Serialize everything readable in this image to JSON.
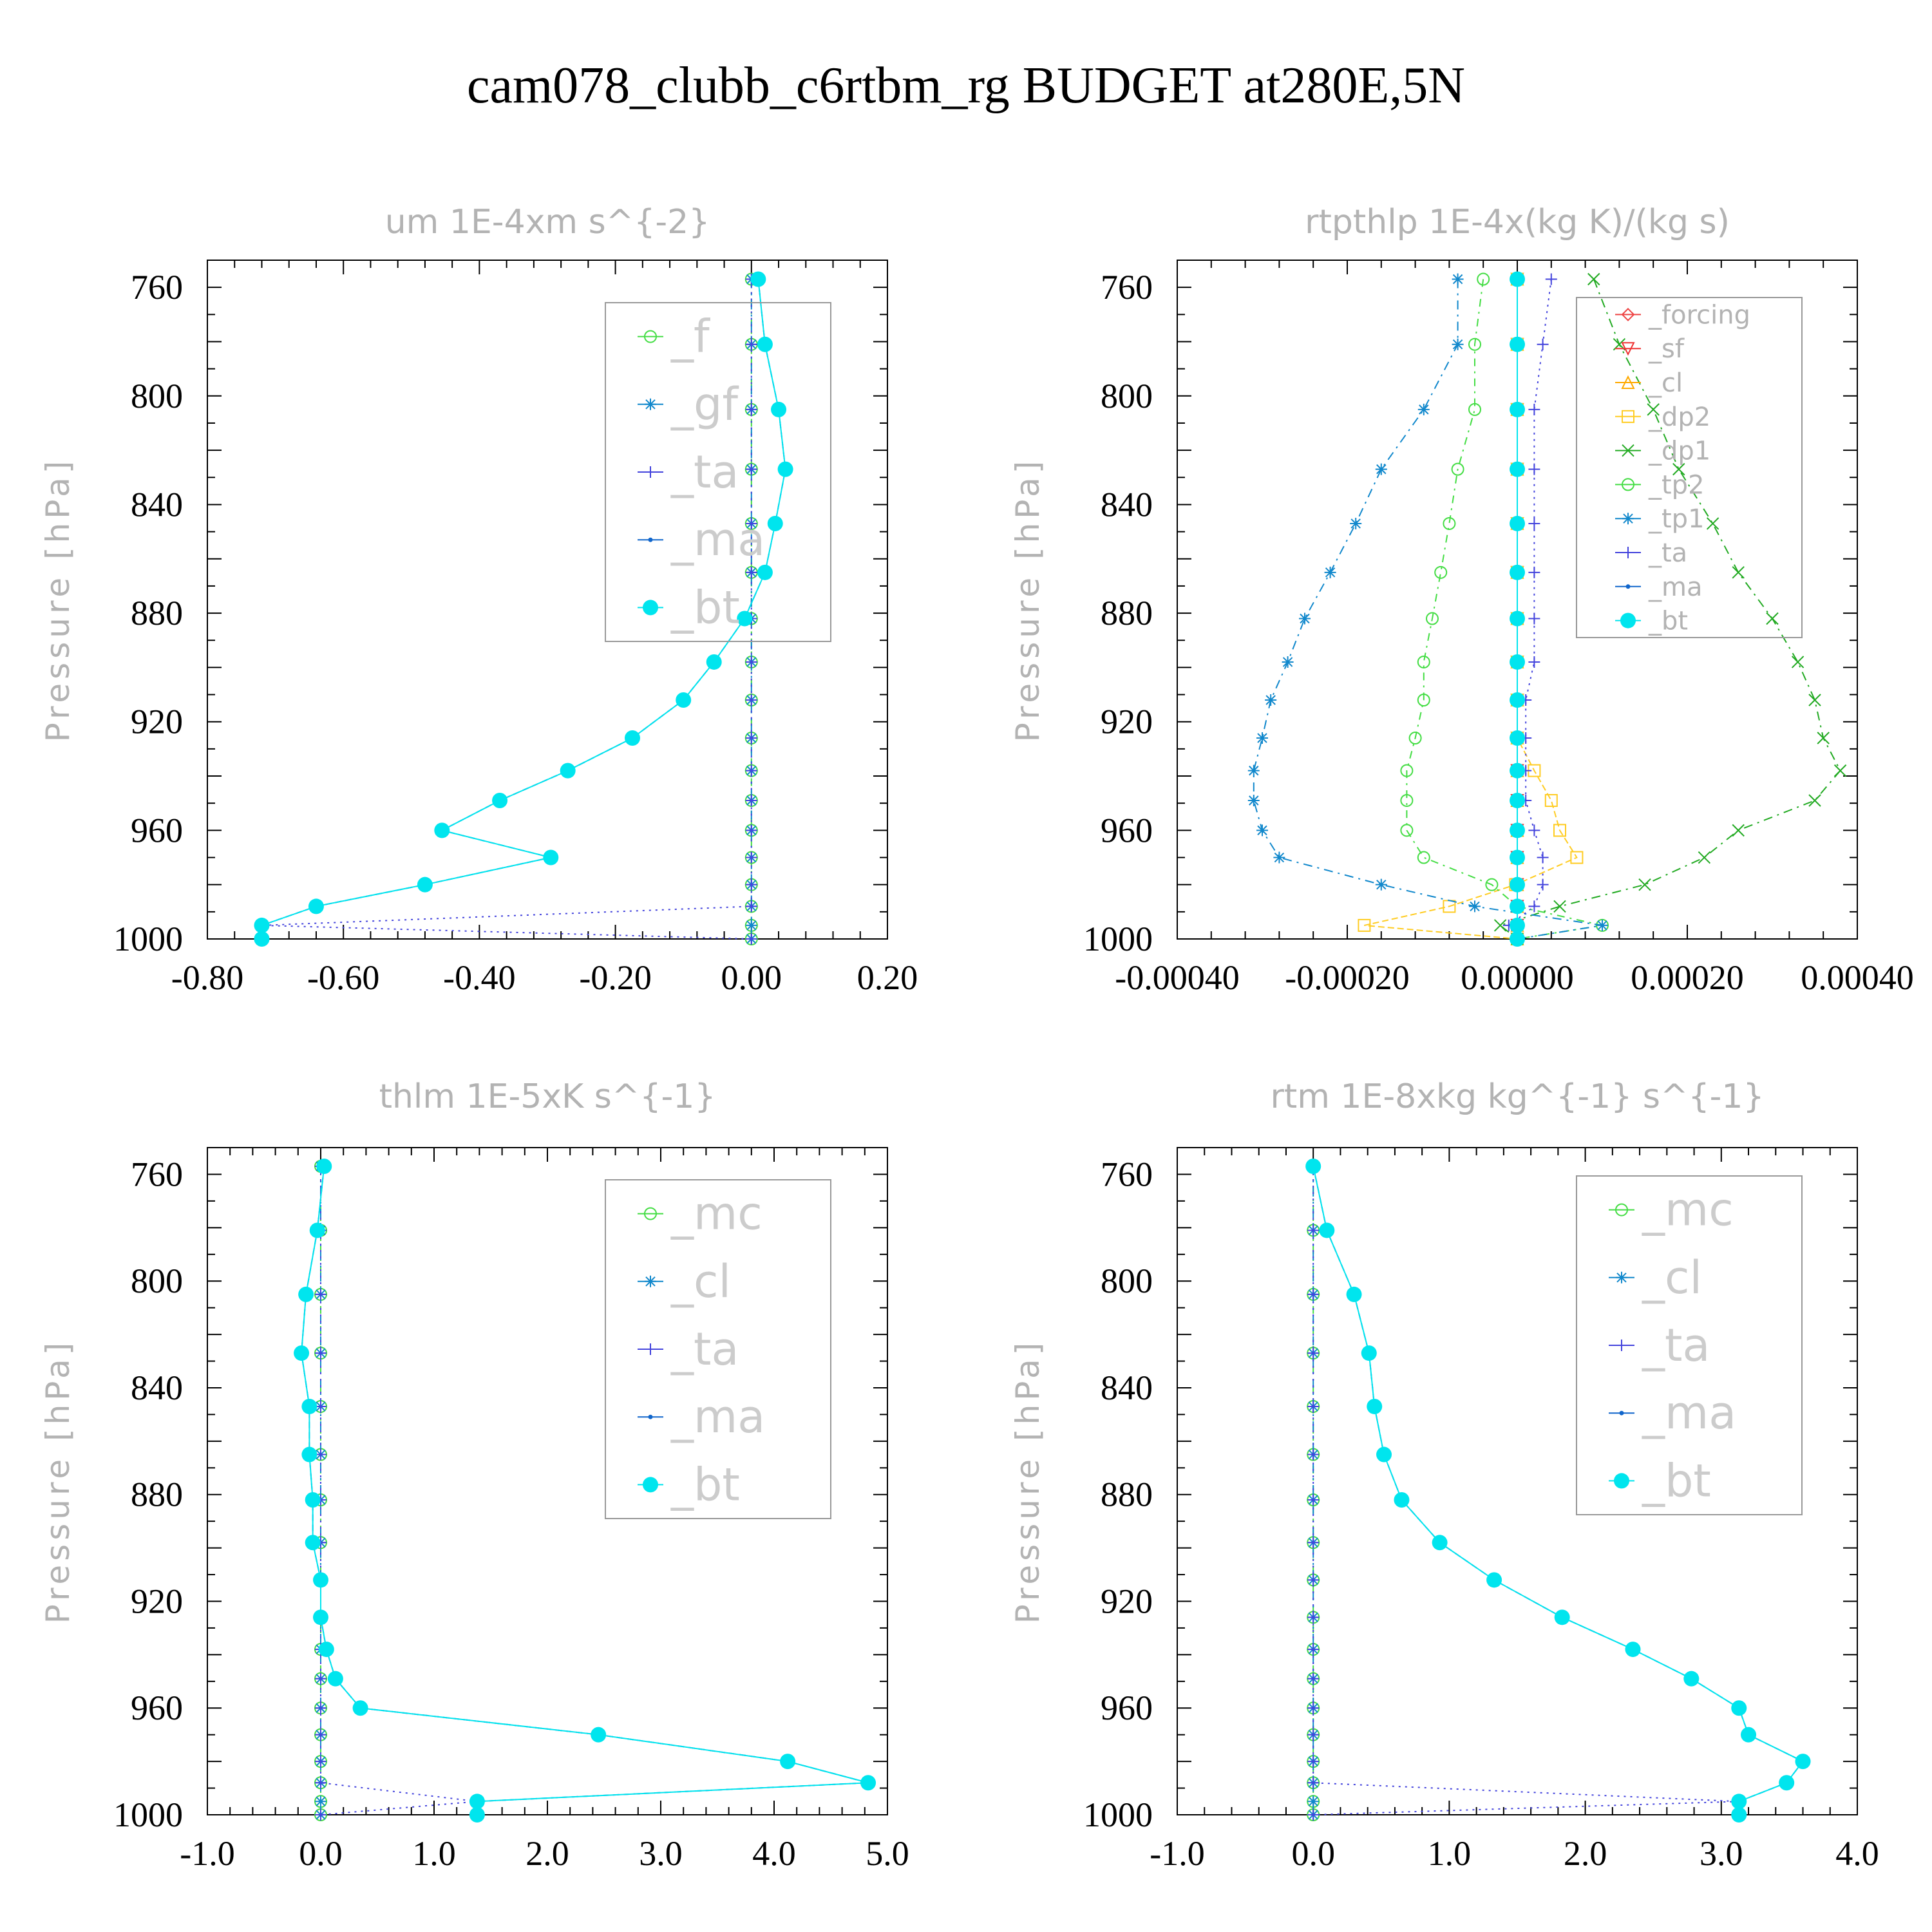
{
  "page": {
    "title": "cam078_clubb_c6rtbm_rg  BUDGET at280E,5N"
  },
  "styles": {
    "_f": {
      "color": "#44dd44",
      "marker": "circle",
      "dash": "12,8,3,8"
    },
    "_gf": {
      "color": "#1188cc",
      "marker": "asterisk",
      "dash": "14,8,3,8"
    },
    "_ta": {
      "color": "#4444dd",
      "marker": "plus",
      "dash": "3,7"
    },
    "_ma": {
      "color": "#1166cc",
      "marker": "dot",
      "dash": "10,6"
    },
    "_bt": {
      "color": "#00e5ee",
      "marker": "filled",
      "dash": "none"
    },
    "_forcing": {
      "color": "#ee4444",
      "marker": "diamond",
      "dash": "none"
    },
    "_sf": {
      "color": "#ee3333",
      "marker": "triangle-down",
      "dash": "none"
    },
    "_cl": {
      "color": "#ffaa00",
      "marker": "triangle-up",
      "dash": "none"
    },
    "_dp2": {
      "color": "#ffcc22",
      "marker": "square",
      "dash": "10,5"
    },
    "_dp1": {
      "color": "#22aa22",
      "marker": "x",
      "dash": "14,8,3,8"
    },
    "_tp2": {
      "color": "#44dd44",
      "marker": "circle",
      "dash": "12,8,3,8"
    },
    "_tp1": {
      "color": "#1188cc",
      "marker": "asterisk",
      "dash": "14,8,3,8"
    },
    "_mc": {
      "color": "#44dd44",
      "marker": "circle",
      "dash": "12,8,3,8"
    },
    "_cl_rtm": {
      "color": "#1188cc",
      "marker": "asterisk",
      "dash": "14,8,3,8"
    }
  },
  "chart_data": [
    {
      "type": "line",
      "title": "um  1E-4xm s^{-2}",
      "ylabel": "Pressure [hPa]",
      "yreversed": true,
      "ylim": [
        750,
        1000
      ],
      "yticks": [
        760,
        800,
        840,
        880,
        920,
        960,
        1000
      ],
      "xlim": [
        -0.8,
        0.2
      ],
      "xticks": [
        -0.8,
        -0.6,
        -0.4,
        -0.2,
        0.0,
        0.2
      ],
      "xtick_labels": [
        "-0.80",
        "-0.60",
        "-0.40",
        "-0.20",
        "0.00",
        "0.20"
      ],
      "legend_size": "big",
      "legend": [
        "_f",
        "_gf",
        "_ta",
        "_ma",
        "_bt"
      ],
      "y": [
        757,
        781,
        805,
        827,
        847,
        865,
        882,
        898,
        912,
        926,
        938,
        949,
        960,
        970,
        980,
        988,
        995,
        1000
      ],
      "series": [
        {
          "name": "_f",
          "values": [
            0,
            0,
            0,
            0,
            0,
            0,
            0,
            0,
            0,
            0,
            0,
            0,
            0,
            0,
            0,
            0,
            0,
            0
          ]
        },
        {
          "name": "_gf",
          "values": [
            0,
            0,
            0,
            0,
            0,
            0,
            0,
            0,
            0,
            0,
            0,
            0,
            0,
            0,
            0,
            0,
            0,
            0
          ]
        },
        {
          "name": "_ta",
          "values": [
            0,
            0,
            0,
            0,
            0,
            0,
            0,
            0,
            0,
            0,
            0,
            0,
            0,
            0,
            0,
            0,
            -0.72,
            0
          ]
        },
        {
          "name": "_ma",
          "values": [
            0.01,
            0.02,
            0.04,
            0.05,
            0.035,
            0.02,
            -0.01,
            -0.055,
            -0.1,
            -0.175,
            -0.27,
            -0.37,
            -0.455,
            -0.295,
            -0.48,
            -0.64,
            -0.72,
            -0.72
          ]
        },
        {
          "name": "_bt",
          "values": [
            0.01,
            0.02,
            0.04,
            0.05,
            0.035,
            0.02,
            -0.01,
            -0.055,
            -0.1,
            -0.175,
            -0.27,
            -0.37,
            -0.455,
            -0.295,
            -0.48,
            -0.64,
            -0.72,
            -0.72
          ]
        }
      ]
    },
    {
      "type": "line",
      "title": "rtpthlp  1E-4x(kg K)/(kg s)",
      "ylabel": "Pressure [hPa]",
      "yreversed": true,
      "ylim": [
        750,
        1000
      ],
      "yticks": [
        760,
        800,
        840,
        880,
        920,
        960,
        1000
      ],
      "xlim": [
        -0.0004,
        0.0004
      ],
      "xticks": [
        -0.0004,
        -0.0002,
        0.0,
        0.0002,
        0.0004
      ],
      "xtick_labels": [
        "-0.00040",
        "-0.00020",
        "0.00000",
        "0.00020",
        "0.00040"
      ],
      "legend_size": "small",
      "legend": [
        "_forcing",
        "_sf",
        "_cl",
        "_dp2",
        "_dp1",
        "_tp2",
        "_tp1",
        "_ta",
        "_ma",
        "_bt"
      ],
      "y": [
        757,
        781,
        805,
        827,
        847,
        865,
        882,
        898,
        912,
        926,
        938,
        949,
        960,
        970,
        980,
        988,
        995,
        1000
      ],
      "series": [
        {
          "name": "_forcing",
          "values": [
            0,
            0,
            0,
            0,
            0,
            0,
            0,
            0,
            0,
            0,
            0,
            0,
            0,
            0,
            0,
            0,
            0,
            0
          ]
        },
        {
          "name": "_sf",
          "values": [
            0,
            0,
            0,
            0,
            0,
            0,
            0,
            0,
            0,
            0,
            0,
            0,
            0,
            0,
            0,
            0,
            0,
            0
          ]
        },
        {
          "name": "_cl",
          "values": [
            0,
            0,
            0,
            0,
            0,
            0,
            0,
            0,
            0,
            0,
            0,
            0,
            0,
            0,
            0,
            0,
            0,
            0
          ]
        },
        {
          "name": "_dp2",
          "values": [
            0,
            0,
            0,
            0,
            0,
            0,
            0,
            0,
            0,
            0,
            2e-05,
            4e-05,
            5e-05,
            7e-05,
            -2e-06,
            -8e-05,
            -0.00018,
            0
          ]
        },
        {
          "name": "_dp1",
          "values": [
            9e-05,
            0.00012,
            0.00016,
            0.00019,
            0.00023,
            0.00026,
            0.0003,
            0.00033,
            0.00035,
            0.00036,
            0.00038,
            0.00035,
            0.00026,
            0.00022,
            0.00015,
            5e-05,
            -2e-05,
            0
          ]
        },
        {
          "name": "_tp2",
          "values": [
            -4e-05,
            -5e-05,
            -5e-05,
            -7e-05,
            -8e-05,
            -9e-05,
            -0.0001,
            -0.00011,
            -0.00011,
            -0.00012,
            -0.00013,
            -0.00013,
            -0.00013,
            -0.00011,
            -3e-05,
            0,
            0.0001,
            0
          ]
        },
        {
          "name": "_tp1",
          "values": [
            -7e-05,
            -7e-05,
            -0.00011,
            -0.00016,
            -0.00019,
            -0.00022,
            -0.00025,
            -0.00027,
            -0.00029,
            -0.0003,
            -0.00031,
            -0.00031,
            -0.0003,
            -0.00028,
            -0.00016,
            -5e-05,
            0.0001,
            0
          ]
        },
        {
          "name": "_ta",
          "values": [
            4e-05,
            3e-05,
            2e-05,
            2e-05,
            2e-05,
            2e-05,
            2e-05,
            2e-05,
            1e-05,
            1e-05,
            1e-05,
            1e-05,
            2e-05,
            3e-05,
            3e-05,
            2e-05,
            -1e-05,
            0
          ]
        },
        {
          "name": "_ma",
          "values": [
            0,
            0,
            0,
            0,
            0,
            0,
            0,
            0,
            0,
            0,
            0,
            0,
            0,
            0,
            0,
            0,
            0,
            0
          ]
        },
        {
          "name": "_bt",
          "values": [
            0,
            0,
            0,
            0,
            0,
            0,
            0,
            0,
            0,
            0,
            0,
            0,
            0,
            0,
            0,
            0,
            0,
            0
          ]
        }
      ]
    },
    {
      "type": "line",
      "title": "thlm  1E-5xK s^{-1}",
      "ylabel": "Pressure [hPa]",
      "yreversed": true,
      "ylim": [
        750,
        1000
      ],
      "yticks": [
        760,
        800,
        840,
        880,
        920,
        960,
        1000
      ],
      "xlim": [
        -1.0,
        5.0
      ],
      "xticks": [
        -1,
        0,
        1,
        2,
        3,
        4,
        5
      ],
      "xtick_labels": [
        "-1.0",
        "0.0",
        "1.0",
        "2.0",
        "3.0",
        "4.0",
        "5.0"
      ],
      "legend_size": "big",
      "legend": [
        "_mc",
        "_cl_rtm",
        "_ta",
        "_ma",
        "_bt"
      ],
      "legend_labels": {
        "_mc": "_mc",
        "_cl_rtm": "_cl",
        "_ta": "_ta",
        "_ma": "_ma",
        "_bt": "_bt"
      },
      "y": [
        757,
        781,
        805,
        827,
        847,
        865,
        882,
        898,
        912,
        926,
        938,
        949,
        960,
        970,
        980,
        988,
        995,
        1000
      ],
      "series": [
        {
          "name": "_mc",
          "values": [
            0,
            0,
            0,
            0,
            0,
            0,
            0,
            0,
            0,
            0,
            0,
            0,
            0,
            0,
            0,
            0,
            0,
            0
          ]
        },
        {
          "name": "_cl_rtm",
          "values": [
            0,
            0,
            0,
            0,
            0,
            0,
            0,
            0,
            0,
            0,
            0,
            0,
            0,
            0,
            0,
            0,
            0,
            0
          ]
        },
        {
          "name": "_ta",
          "values": [
            0,
            0,
            0,
            0,
            0,
            0,
            0,
            0,
            0,
            0,
            0,
            0,
            0,
            0,
            0,
            0,
            1.38,
            0
          ]
        },
        {
          "name": "_ma",
          "values": [
            0.03,
            -0.03,
            -0.13,
            -0.17,
            -0.1,
            -0.1,
            -0.07,
            -0.07,
            0,
            0,
            0.05,
            0.13,
            0.35,
            2.45,
            4.12,
            4.83,
            1.38,
            1.38
          ]
        },
        {
          "name": "_bt",
          "values": [
            0.03,
            -0.03,
            -0.13,
            -0.17,
            -0.1,
            -0.1,
            -0.07,
            -0.07,
            0,
            0,
            0.05,
            0.13,
            0.35,
            2.45,
            4.12,
            4.83,
            1.38,
            1.38
          ]
        }
      ]
    },
    {
      "type": "line",
      "title": "rtm  1E-8xkg kg^{-1} s^{-1}",
      "ylabel": "Pressure [hPa]",
      "yreversed": true,
      "ylim": [
        750,
        1000
      ],
      "yticks": [
        760,
        800,
        840,
        880,
        920,
        960,
        1000
      ],
      "xlim": [
        -1.0,
        4.0
      ],
      "xticks": [
        -1,
        0,
        1,
        2,
        3,
        4
      ],
      "xtick_labels": [
        "-1.0",
        "0.0",
        "1.0",
        "2.0",
        "3.0",
        "4.0"
      ],
      "legend_size": "big",
      "legend": [
        "_mc",
        "_cl_rtm",
        "_ta",
        "_ma",
        "_bt"
      ],
      "legend_labels": {
        "_mc": "_mc",
        "_cl_rtm": "_cl",
        "_ta": "_ta",
        "_ma": "_ma",
        "_bt": "_bt"
      },
      "y": [
        757,
        781,
        805,
        827,
        847,
        865,
        882,
        898,
        912,
        926,
        938,
        949,
        960,
        970,
        980,
        988,
        995,
        1000
      ],
      "series": [
        {
          "name": "_mc",
          "values": [
            0,
            0,
            0,
            0,
            0,
            0,
            0,
            0,
            0,
            0,
            0,
            0,
            0,
            0,
            0,
            0,
            0,
            0
          ]
        },
        {
          "name": "_cl_rtm",
          "values": [
            0,
            0,
            0,
            0,
            0,
            0,
            0,
            0,
            0,
            0,
            0,
            0,
            0,
            0,
            0,
            0,
            0,
            0
          ]
        },
        {
          "name": "_ta",
          "values": [
            0,
            0,
            0,
            0,
            0,
            0,
            0,
            0,
            0,
            0,
            0,
            0,
            0,
            0,
            0,
            0,
            3.13,
            0
          ]
        },
        {
          "name": "_ma",
          "values": [
            0,
            0.1,
            0.3,
            0.41,
            0.45,
            0.52,
            0.65,
            0.93,
            1.33,
            1.83,
            2.35,
            2.78,
            3.13,
            3.2,
            3.6,
            3.48,
            3.13,
            3.13
          ]
        },
        {
          "name": "_bt",
          "values": [
            0,
            0.1,
            0.3,
            0.41,
            0.45,
            0.52,
            0.65,
            0.93,
            1.33,
            1.83,
            2.35,
            2.78,
            3.13,
            3.2,
            3.6,
            3.48,
            3.13,
            3.13
          ]
        }
      ]
    }
  ]
}
